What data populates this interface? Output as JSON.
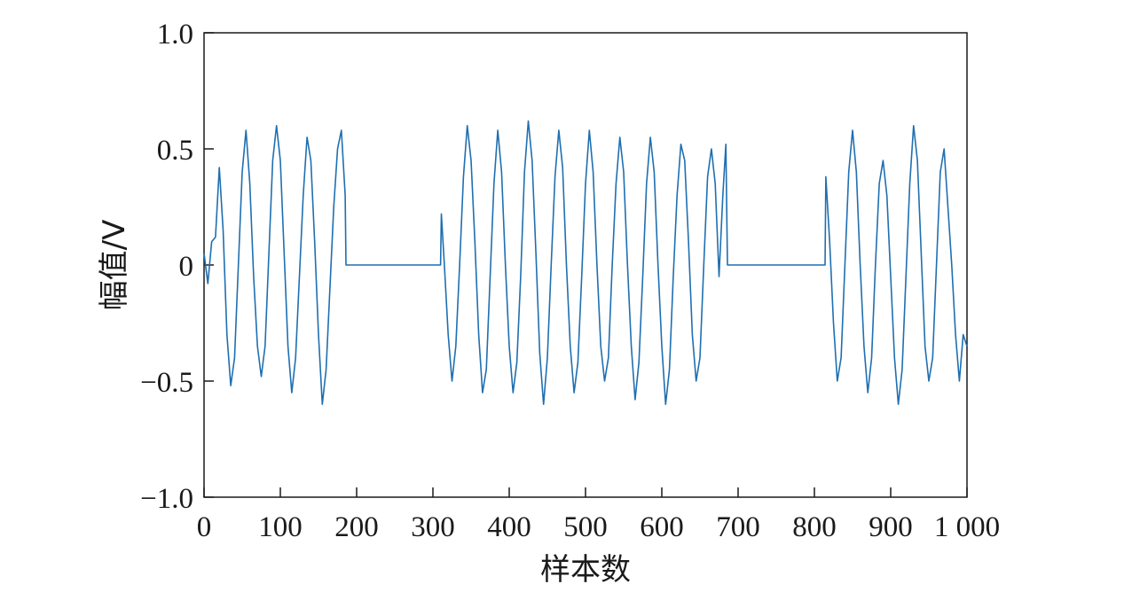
{
  "chart_data": {
    "type": "line",
    "xlabel": "样本数",
    "ylabel": "幅值/V",
    "xlim": [
      0,
      1000
    ],
    "ylim": [
      -1.0,
      1.0
    ],
    "grid": false,
    "x_ticks": [
      {
        "value": 0,
        "label": "0"
      },
      {
        "value": 100,
        "label": "100"
      },
      {
        "value": 200,
        "label": "200"
      },
      {
        "value": 300,
        "label": "300"
      },
      {
        "value": 400,
        "label": "400"
      },
      {
        "value": 500,
        "label": "500"
      },
      {
        "value": 600,
        "label": "600"
      },
      {
        "value": 700,
        "label": "700"
      },
      {
        "value": 800,
        "label": "800"
      },
      {
        "value": 900,
        "label": "900"
      },
      {
        "value": 1000,
        "label": "1 000"
      }
    ],
    "y_ticks": [
      {
        "value": 1.0,
        "label": "1.0"
      },
      {
        "value": 0.5,
        "label": "0.5"
      },
      {
        "value": 0,
        "label": "0"
      },
      {
        "value": -0.5,
        "label": "−0.5"
      },
      {
        "value": -1.0,
        "label": "−1.0"
      }
    ],
    "series": [
      {
        "color": "#1f6fb0",
        "points": [
          [
            0,
            0.05
          ],
          [
            5,
            -0.08
          ],
          [
            10,
            0.1
          ],
          [
            15,
            0.12
          ],
          [
            20,
            0.42
          ],
          [
            25,
            0.15
          ],
          [
            30,
            -0.3
          ],
          [
            35,
            -0.52
          ],
          [
            40,
            -0.4
          ],
          [
            45,
            0.0
          ],
          [
            50,
            0.4
          ],
          [
            55,
            0.58
          ],
          [
            60,
            0.35
          ],
          [
            65,
            -0.05
          ],
          [
            70,
            -0.35
          ],
          [
            75,
            -0.48
          ],
          [
            80,
            -0.35
          ],
          [
            85,
            0.05
          ],
          [
            90,
            0.45
          ],
          [
            95,
            0.6
          ],
          [
            100,
            0.45
          ],
          [
            105,
            0.05
          ],
          [
            110,
            -0.35
          ],
          [
            115,
            -0.55
          ],
          [
            120,
            -0.4
          ],
          [
            125,
            -0.05
          ],
          [
            130,
            0.3
          ],
          [
            135,
            0.55
          ],
          [
            140,
            0.45
          ],
          [
            145,
            0.1
          ],
          [
            150,
            -0.3
          ],
          [
            155,
            -0.6
          ],
          [
            160,
            -0.45
          ],
          [
            165,
            -0.1
          ],
          [
            170,
            0.25
          ],
          [
            175,
            0.5
          ],
          [
            180,
            0.58
          ],
          [
            185,
            0.3
          ],
          [
            186,
            0.0
          ],
          [
            250,
            0.0
          ],
          [
            310,
            0.0
          ],
          [
            311,
            0.22
          ],
          [
            315,
            0.0
          ],
          [
            320,
            -0.3
          ],
          [
            325,
            -0.5
          ],
          [
            330,
            -0.35
          ],
          [
            335,
            0.0
          ],
          [
            340,
            0.38
          ],
          [
            345,
            0.6
          ],
          [
            350,
            0.45
          ],
          [
            355,
            0.1
          ],
          [
            360,
            -0.3
          ],
          [
            365,
            -0.55
          ],
          [
            370,
            -0.45
          ],
          [
            375,
            -0.05
          ],
          [
            380,
            0.35
          ],
          [
            385,
            0.58
          ],
          [
            390,
            0.4
          ],
          [
            395,
            0.0
          ],
          [
            400,
            -0.35
          ],
          [
            405,
            -0.55
          ],
          [
            410,
            -0.42
          ],
          [
            415,
            -0.05
          ],
          [
            420,
            0.4
          ],
          [
            425,
            0.62
          ],
          [
            430,
            0.45
          ],
          [
            435,
            0.05
          ],
          [
            440,
            -0.38
          ],
          [
            445,
            -0.6
          ],
          [
            450,
            -0.4
          ],
          [
            455,
            0.0
          ],
          [
            460,
            0.38
          ],
          [
            465,
            0.58
          ],
          [
            470,
            0.42
          ],
          [
            475,
            0.0
          ],
          [
            480,
            -0.35
          ],
          [
            485,
            -0.55
          ],
          [
            490,
            -0.42
          ],
          [
            495,
            -0.05
          ],
          [
            500,
            0.35
          ],
          [
            505,
            0.58
          ],
          [
            510,
            0.4
          ],
          [
            515,
            0.0
          ],
          [
            520,
            -0.35
          ],
          [
            525,
            -0.5
          ],
          [
            530,
            -0.4
          ],
          [
            535,
            0.0
          ],
          [
            540,
            0.35
          ],
          [
            545,
            0.55
          ],
          [
            550,
            0.4
          ],
          [
            555,
            0.0
          ],
          [
            560,
            -0.35
          ],
          [
            565,
            -0.58
          ],
          [
            570,
            -0.42
          ],
          [
            575,
            -0.05
          ],
          [
            580,
            0.35
          ],
          [
            585,
            0.55
          ],
          [
            590,
            0.4
          ],
          [
            595,
            0.0
          ],
          [
            600,
            -0.35
          ],
          [
            605,
            -0.6
          ],
          [
            610,
            -0.45
          ],
          [
            615,
            -0.05
          ],
          [
            620,
            0.3
          ],
          [
            625,
            0.52
          ],
          [
            630,
            0.45
          ],
          [
            635,
            0.1
          ],
          [
            640,
            -0.3
          ],
          [
            645,
            -0.5
          ],
          [
            650,
            -0.4
          ],
          [
            655,
            0.0
          ],
          [
            660,
            0.38
          ],
          [
            665,
            0.5
          ],
          [
            670,
            0.35
          ],
          [
            675,
            -0.05
          ],
          [
            680,
            0.3
          ],
          [
            684,
            0.52
          ],
          [
            686,
            0.0
          ],
          [
            750,
            0.0
          ],
          [
            814,
            0.0
          ],
          [
            815,
            0.38
          ],
          [
            820,
            0.1
          ],
          [
            825,
            -0.25
          ],
          [
            830,
            -0.5
          ],
          [
            835,
            -0.4
          ],
          [
            840,
            0.0
          ],
          [
            845,
            0.4
          ],
          [
            850,
            0.58
          ],
          [
            855,
            0.4
          ],
          [
            860,
            0.0
          ],
          [
            865,
            -0.35
          ],
          [
            870,
            -0.55
          ],
          [
            875,
            -0.4
          ],
          [
            880,
            0.0
          ],
          [
            885,
            0.35
          ],
          [
            890,
            0.45
          ],
          [
            895,
            0.3
          ],
          [
            900,
            -0.05
          ],
          [
            905,
            -0.4
          ],
          [
            910,
            -0.6
          ],
          [
            915,
            -0.45
          ],
          [
            920,
            -0.05
          ],
          [
            925,
            0.35
          ],
          [
            930,
            0.6
          ],
          [
            935,
            0.45
          ],
          [
            940,
            0.05
          ],
          [
            945,
            -0.35
          ],
          [
            950,
            -0.5
          ],
          [
            955,
            -0.4
          ],
          [
            960,
            0.0
          ],
          [
            965,
            0.4
          ],
          [
            970,
            0.5
          ],
          [
            975,
            0.25
          ],
          [
            980,
            0.0
          ],
          [
            985,
            -0.3
          ],
          [
            990,
            -0.5
          ],
          [
            995,
            -0.3
          ],
          [
            1000,
            -0.35
          ]
        ]
      }
    ]
  }
}
